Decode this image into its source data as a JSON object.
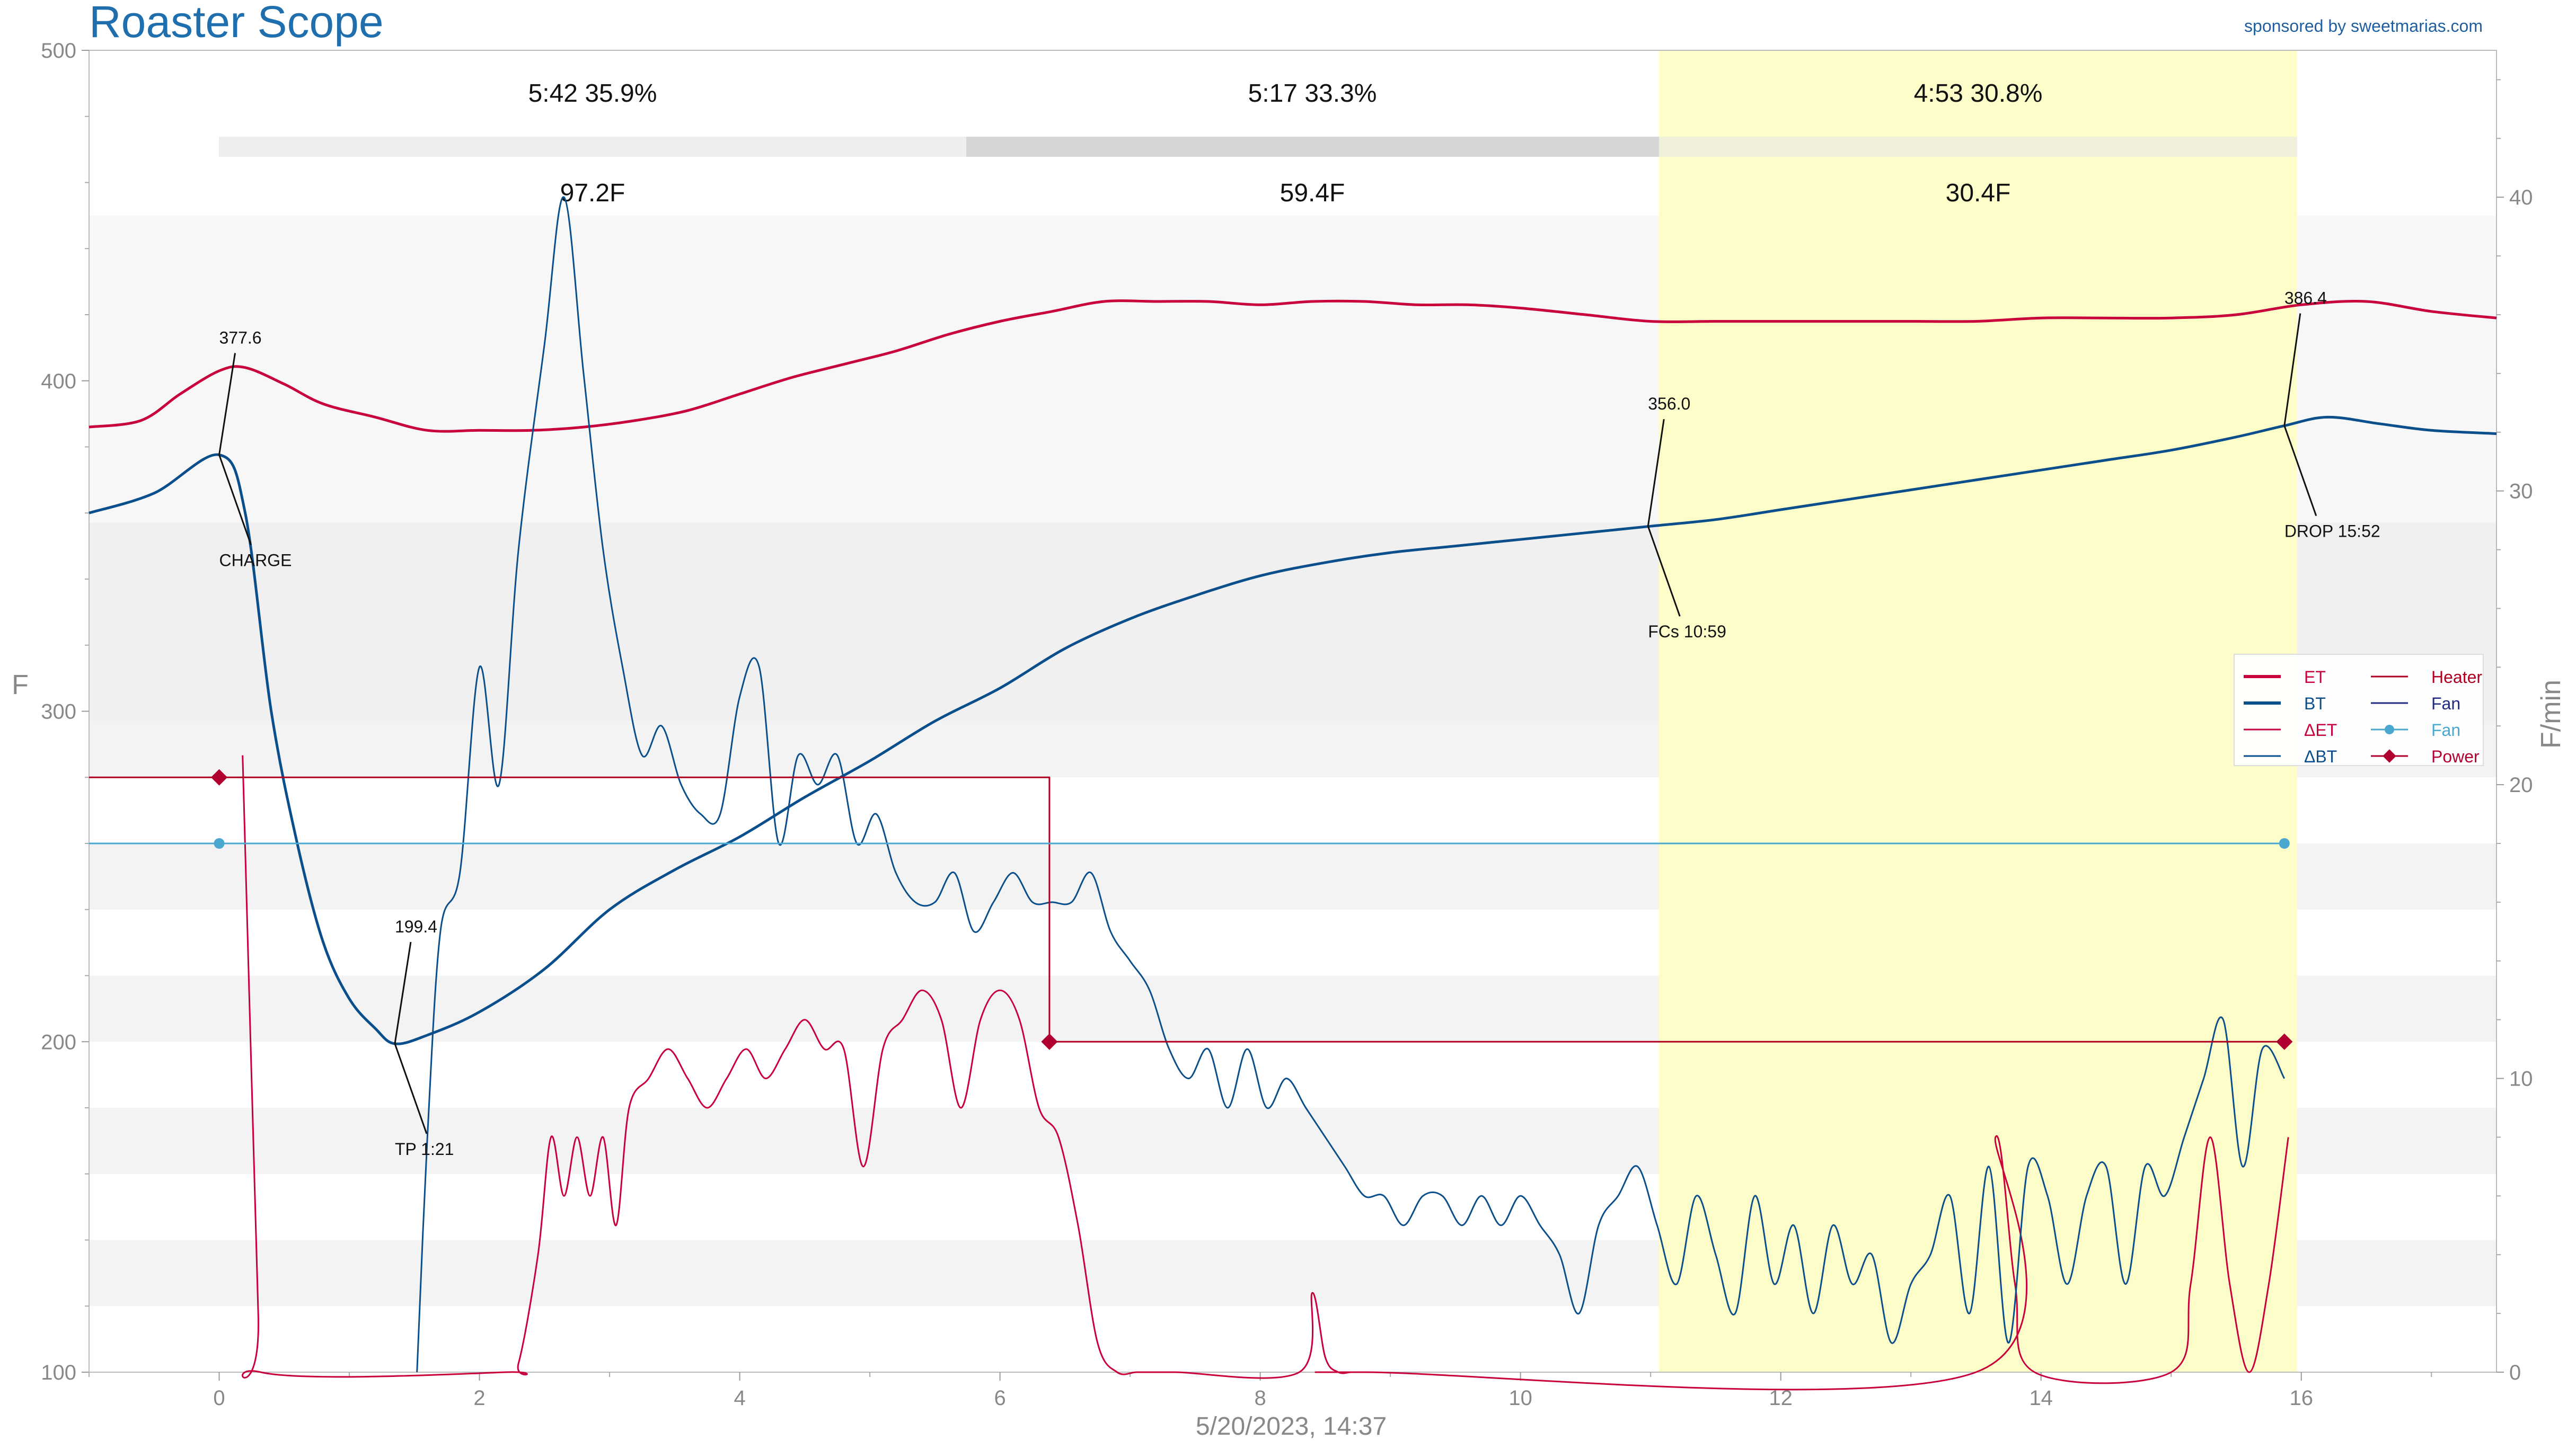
{
  "header": {
    "title": "Roaster Scope",
    "sponsor": "sponsored by sweetmarias.com"
  },
  "colors": {
    "et": "#c8003c",
    "bt": "#0a4f8c",
    "fan": "#4aa8d0",
    "power": "#b00030",
    "heater": "#b00020",
    "fan_dark": "#1f2a80",
    "phase_highlight": "#fdfdc9",
    "title": "#1f6fae"
  },
  "chart_data": {
    "type": "line",
    "xlabel": "5/20/2023, 14:37",
    "ylabel": "F",
    "y2label": "F/min",
    "xlim": [
      -1,
      17.5
    ],
    "ylim": [
      100,
      500
    ],
    "y2lim": [
      0,
      45
    ],
    "xticks": [
      "0",
      "2",
      "4",
      "6",
      "8",
      "10",
      "12",
      "14",
      "16"
    ],
    "yticks": [
      "100",
      "200",
      "300",
      "400",
      "500"
    ],
    "y2ticks": [
      "0",
      "10",
      "20",
      "30",
      "40"
    ],
    "phases": [
      {
        "time": "5:42",
        "percent": "35.9%",
        "delta": "97.2F",
        "start": 0,
        "end": 5.7
      },
      {
        "time": "5:17",
        "percent": "33.3%",
        "delta": "59.4F",
        "start": 5.7,
        "end": 10.98
      },
      {
        "time": "4:53",
        "percent": "30.8%",
        "delta": "30.4F",
        "start": 10.98,
        "end": 15.87
      }
    ],
    "annotations": [
      {
        "value": "377.6",
        "label": "CHARGE",
        "x": 0,
        "y": 377.6
      },
      {
        "value": "199.4",
        "label": "TP 1:21",
        "x": 1.35,
        "y": 199.4
      },
      {
        "value": "356.0",
        "label": "FCs 10:59",
        "x": 10.98,
        "y": 356.0
      },
      {
        "value": "386.4",
        "label": "DROP 15:52",
        "x": 15.87,
        "y": 386.4
      }
    ],
    "legend": {
      "placement": "right",
      "entries": [
        "ET",
        "BT",
        "ΔET",
        "ΔBT",
        "Heater",
        "Fan",
        "Fan",
        "Power"
      ]
    },
    "series": [
      {
        "name": "ET",
        "axis": "left",
        "x": [
          -1,
          -0.6,
          -0.3,
          0,
          0.2,
          0.5,
          0.8,
          1.2,
          1.6,
          2,
          2.4,
          2.8,
          3.2,
          3.6,
          4,
          4.4,
          4.8,
          5.2,
          5.6,
          6,
          6.4,
          6.8,
          7.2,
          7.6,
          8,
          8.4,
          8.8,
          9.2,
          9.6,
          10,
          10.5,
          11,
          11.5,
          12,
          12.5,
          13,
          13.5,
          14,
          14.5,
          15,
          15.5,
          16,
          16.5,
          17,
          17.5
        ],
        "y": [
          386,
          388,
          396,
          403,
          404,
          399,
          393,
          389,
          385,
          385,
          385,
          386,
          388,
          391,
          396,
          401,
          405,
          409,
          414,
          418,
          421,
          424,
          424,
          424,
          423,
          424,
          424,
          423,
          423,
          422,
          420,
          418,
          418,
          418,
          418,
          418,
          418,
          419,
          419,
          419,
          420,
          423,
          424,
          421,
          419
        ]
      },
      {
        "name": "BT",
        "axis": "left",
        "x": [
          -1,
          -0.5,
          0,
          0.2,
          0.4,
          0.6,
          0.8,
          1,
          1.2,
          1.35,
          1.6,
          2,
          2.5,
          3,
          3.5,
          4,
          4.5,
          5,
          5.5,
          6,
          6.5,
          7,
          7.5,
          8,
          8.5,
          9,
          9.5,
          10,
          10.5,
          11,
          11.5,
          12,
          12.5,
          13,
          13.5,
          14,
          14.5,
          15,
          15.5,
          15.87,
          16.2,
          16.6,
          17,
          17.5
        ],
        "y": [
          360,
          366,
          377.6,
          360,
          300,
          260,
          230,
          213,
          204,
          199.4,
          202,
          209,
          222,
          240,
          252,
          262,
          274,
          285,
          297,
          307,
          319,
          328,
          335,
          341,
          345,
          348,
          350,
          352,
          354,
          356,
          358,
          361,
          364,
          367,
          370,
          373,
          376,
          379,
          383,
          386.4,
          389,
          387,
          385,
          384
        ]
      },
      {
        "name": "ΔET",
        "axis": "right",
        "x": [
          0.18,
          0.3,
          0.32,
          2.2,
          2.3,
          2.45,
          2.55,
          2.65,
          2.75,
          2.85,
          2.95,
          3.05,
          3.15,
          3.3,
          3.45,
          3.6,
          3.75,
          3.9,
          4.05,
          4.2,
          4.35,
          4.5,
          4.65,
          4.8,
          4.95,
          5.1,
          5.25,
          5.4,
          5.55,
          5.7,
          5.85,
          6,
          6.15,
          6.3,
          6.45,
          6.6,
          6.75,
          6.9,
          7.05,
          7.2,
          7.35,
          8.3,
          8.4,
          8.5,
          8.6,
          8.7,
          8.8,
          13.5,
          13.65,
          13.8,
          13.95,
          15.0,
          15.15,
          15.3,
          15.45,
          15.6,
          15.75,
          15.9
        ],
        "y": [
          21,
          2,
          0,
          0,
          0.3,
          4,
          8,
          6,
          8,
          6,
          8,
          5,
          9,
          10,
          11,
          10,
          9,
          10,
          11,
          10,
          11,
          12,
          11,
          11,
          7,
          11,
          12,
          13,
          12,
          9,
          12,
          13,
          12,
          9,
          8,
          5,
          1,
          0,
          0,
          0,
          0,
          0,
          2.7,
          0.5,
          0,
          0,
          0,
          0,
          8,
          3,
          0,
          0,
          3,
          8,
          3,
          0,
          3,
          8
        ]
      },
      {
        "name": "ΔBT",
        "axis": "right",
        "x": [
          1.52,
          1.6,
          1.7,
          1.85,
          2,
          2.15,
          2.3,
          2.5,
          2.65,
          2.8,
          2.95,
          3.1,
          3.25,
          3.4,
          3.55,
          3.7,
          3.85,
          4,
          4.15,
          4.3,
          4.45,
          4.6,
          4.75,
          4.9,
          5.05,
          5.2,
          5.35,
          5.5,
          5.65,
          5.8,
          5.95,
          6.1,
          6.25,
          6.4,
          6.55,
          6.7,
          6.85,
          7,
          7.15,
          7.3,
          7.45,
          7.6,
          7.75,
          7.9,
          8.05,
          8.2,
          8.35,
          8.5,
          8.65,
          8.8,
          8.95,
          9.1,
          9.25,
          9.4,
          9.55,
          9.7,
          9.85,
          10,
          10.15,
          10.3,
          10.45,
          10.6,
          10.75,
          10.9,
          11.05,
          11.2,
          11.35,
          11.5,
          11.65,
          11.8,
          11.95,
          12.1,
          12.25,
          12.4,
          12.55,
          12.7,
          12.85,
          13,
          13.15,
          13.3,
          13.45,
          13.6,
          13.75,
          13.9,
          14.05,
          14.2,
          14.35,
          14.5,
          14.65,
          14.8,
          14.95,
          15.1,
          15.25,
          15.4,
          15.55,
          15.7,
          15.87
        ],
        "y": [
          0,
          8,
          15,
          17,
          24,
          20,
          28,
          35,
          40,
          34,
          28,
          24,
          21,
          22,
          20,
          19,
          19,
          23,
          24,
          18,
          21,
          20,
          21,
          18,
          19,
          17,
          16,
          16,
          17,
          15,
          16,
          17,
          16,
          16,
          16,
          17,
          15,
          14,
          13,
          11,
          10,
          11,
          9,
          11,
          9,
          10,
          9,
          8,
          7,
          6,
          6,
          5,
          6,
          6,
          5,
          6,
          5,
          6,
          5,
          4,
          2,
          5,
          6,
          7,
          5,
          3,
          6,
          4,
          2,
          6,
          3,
          5,
          2,
          5,
          3,
          4,
          1,
          3,
          4,
          6,
          2,
          7,
          1,
          7,
          6,
          3,
          6,
          7,
          3,
          7,
          6,
          8,
          10,
          12,
          7,
          11,
          10
        ]
      },
      {
        "name": "Heater",
        "axis": "left",
        "x": [
          -1,
          6.38,
          6.38,
          15.87
        ],
        "y": [
          280,
          280,
          200,
          200
        ]
      },
      {
        "name": "Fan",
        "axis": "left",
        "x": [
          -1,
          15.87
        ],
        "y": [
          260,
          260
        ]
      },
      {
        "name": "Power",
        "axis": "left",
        "x": [
          0,
          6.38,
          15.87
        ],
        "y": [
          280,
          200,
          200
        ]
      }
    ]
  }
}
